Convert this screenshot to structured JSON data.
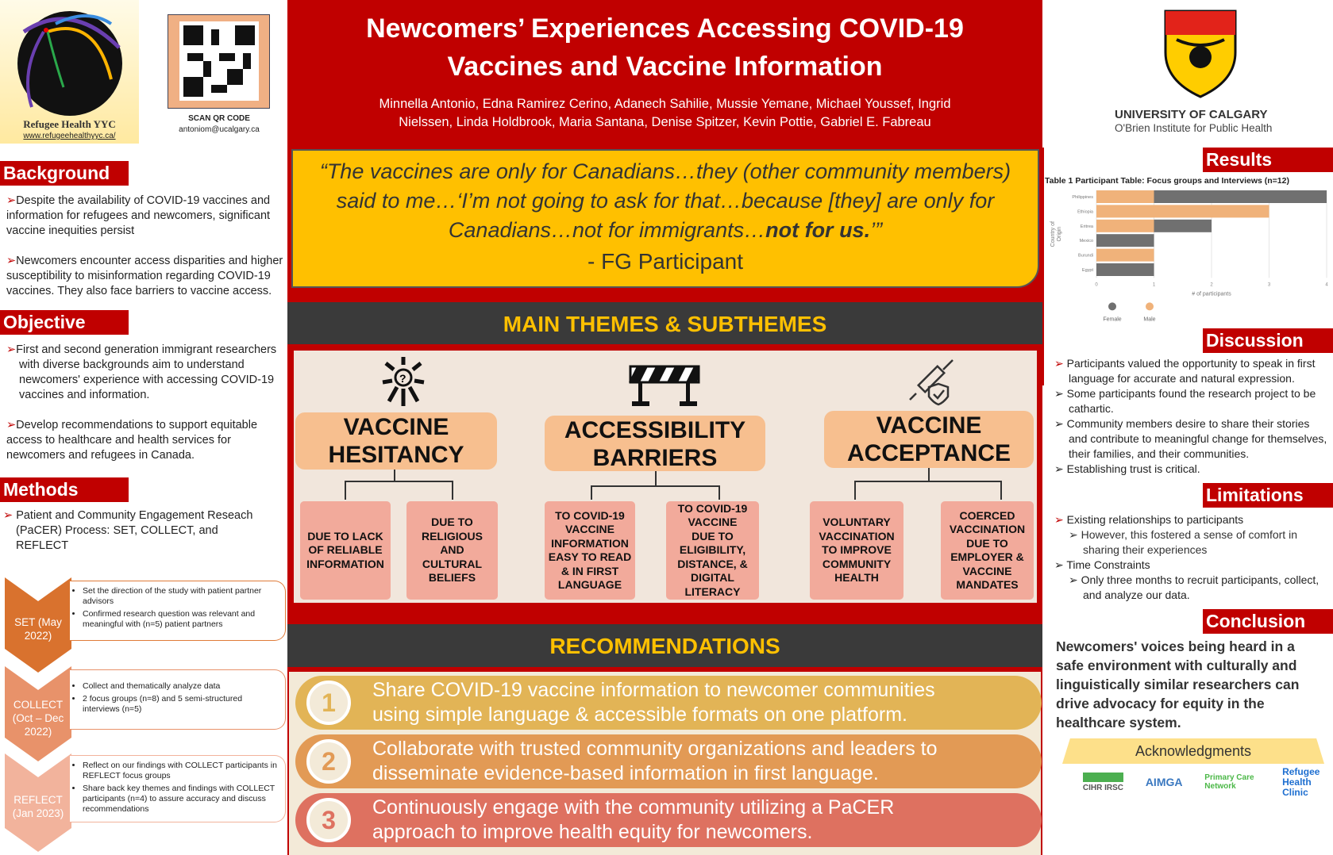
{
  "header": {
    "title_line1": "Newcomers’ Experiences Accessing COVID-19",
    "title_line2": "Vaccines and Vaccine Information",
    "authors_line1": "Minnella Antonio, Edna Ramirez Cerino, Adanech Sahilie, Mussie Yemane, Michael Youssef, Ingrid",
    "authors_line2": "Nielssen, Linda Holdbrook, Maria Santana, Denise Spitzer, Kevin Pottie, Gabriel E. Fabreau"
  },
  "logos": {
    "refugee_health": "Refugee Health YYC",
    "refugee_url": "www.refugeehealthyyc.ca/",
    "qr_label": "SCAN QR CODE",
    "qr_email": "antoniom@ucalgary.ca",
    "uofc_name": "UNIVERSITY OF CALGARY",
    "uofc_institute": "O'Brien Institute for Public Health"
  },
  "quote": {
    "text1": "“The vaccines are only for Canadians…they (other community members) said to me…‘I’m not going to ask for that…because [they] are only for Canadians…not for immigrants…",
    "text_bold": "not for us.",
    "text_end": "’”",
    "attribution": "- FG Participant"
  },
  "background": {
    "heading": "Background",
    "items": [
      "Despite the availability of COVID-19 vaccines and information for refugees and newcomers, significant vaccine inequities persist",
      "Newcomers encounter access disparities and higher susceptibility to misinformation regarding COVID-19 vaccines. They also face barriers to vaccine access."
    ]
  },
  "objective": {
    "heading": "Objective",
    "items": [
      "First and second generation immigrant researchers with diverse backgrounds aim to understand newcomers' experience with accessing COVID-19 vaccines and information.",
      "Develop recommendations to support equitable access to healthcare and health services for newcomers and refugees in Canada."
    ]
  },
  "methods": {
    "heading": "Methods",
    "intro": "Patient and Community Engagement Reseach (PaCER) Process: SET, COLLECT, and REFLECT",
    "steps": [
      {
        "label": "SET (May 2022)",
        "color": "#d9722e",
        "bullets": [
          "Set the direction of the study with patient partner advisors",
          "Confirmed research question was relevant and meaningful with (n=5) patient partners"
        ]
      },
      {
        "label": "COLLECT (Oct – Dec 2022)",
        "color": "#e8926a",
        "bullets": [
          "Collect and thematically analyze data",
          "2 focus groups (n=8) and 5 semi-structured interviews (n=5)"
        ]
      },
      {
        "label": "REFLECT (Jan 2023)",
        "color": "#f2b39c",
        "bullets": [
          "Reflect on our findings with COLLECT participants in REFLECT focus groups",
          "Share back key themes and findings with COLLECT participants (n=4) to assure accuracy and discuss recommendations"
        ]
      }
    ]
  },
  "themes": {
    "heading": "MAIN THEMES & SUBTHEMES",
    "items": [
      {
        "title1": "VACCINE",
        "title2": "HESITANCY",
        "icon": "question-person-icon",
        "subs": [
          [
            "DUE TO LACK",
            "OF RELIABLE",
            "INFORMATION"
          ],
          [
            "DUE TO",
            "RELIGIOUS",
            "AND",
            "CULTURAL",
            "BELIEFS"
          ]
        ]
      },
      {
        "title1": "ACCESSIBILITY",
        "title2": "BARRIERS",
        "icon": "barrier-icon",
        "subs": [
          [
            "TO COVID-19",
            "VACCINE",
            "INFORMATION",
            "EASY TO READ",
            "& IN FIRST",
            "LANGUAGE"
          ],
          [
            "TO COVID-19",
            "VACCINE",
            "DUE TO",
            "ELIGIBILITY,",
            "DISTANCE, &",
            "DIGITAL",
            "LITERACY"
          ]
        ]
      },
      {
        "title1": "VACCINE",
        "title2": "ACCEPTANCE",
        "icon": "syringe-shield-icon",
        "subs": [
          [
            "VOLUNTARY",
            "VACCINATION",
            "TO IMPROVE",
            "COMMUNITY",
            "HEALTH"
          ],
          [
            "COERCED",
            "VACCINATION",
            "DUE TO",
            "EMPLOYER &",
            "VACCINE",
            "MANDATES"
          ]
        ]
      }
    ]
  },
  "recommendations": {
    "heading": "RECOMMENDATIONS",
    "items": [
      {
        "num": "1",
        "line1": "Share COVID-19 vaccine information to newcomer communities",
        "line2": "using simple language & accessible formats on one platform.",
        "color": "#e2b456"
      },
      {
        "num": "2",
        "line1": "Collaborate with trusted community organizations and leaders to",
        "line2": "disseminate evidence-based information in first language.",
        "color": "#e29a55"
      },
      {
        "num": "3",
        "line1": "Continuously engage with the community utilizing a PaCER",
        "line2": "approach to improve health equity for newcomers.",
        "color": "#de7160"
      }
    ]
  },
  "results": {
    "heading": "Results"
  },
  "chart_data": {
    "type": "bar",
    "orientation": "horizontal",
    "stacked": true,
    "title": "Table 1 Participant Table: Focus groups and Interviews (n=12)",
    "xlabel": "# of participants",
    "ylabel": "Country of Origin",
    "xlim": [
      0,
      4
    ],
    "xticks": [
      "0",
      "1",
      "2",
      "3",
      "4"
    ],
    "categories": [
      "Philippines",
      "Ethiopia",
      "Eritrea",
      "Mexico",
      "Burundi",
      "Egypt"
    ],
    "series": [
      {
        "name": "Male",
        "color": "#f0b27a",
        "values": [
          1,
          3,
          1,
          0,
          1,
          0
        ]
      },
      {
        "name": "Female",
        "color": "#707070",
        "values": [
          3,
          0,
          1,
          1,
          0,
          1
        ]
      }
    ],
    "legend": "bottom",
    "legend_order": [
      "Female",
      "Male"
    ],
    "grid": true
  },
  "discussion": {
    "heading": "Discussion",
    "items": [
      "Participants valued the opportunity to speak in first language for accurate and natural expression.",
      "Some participants found the research project to be cathartic.",
      "Community members desire to share their stories and contribute to meaningful change for themselves, their families, and their communities.",
      "Establishing trust is critical."
    ]
  },
  "limitations": {
    "heading": "Limitations",
    "item1": "Existing relationships to participants",
    "sub1": "However, this fostered a sense of comfort in sharing their experiences",
    "item2": "Time Constraints",
    "sub2": "Only three months to recruit participants, collect, and analyze our data."
  },
  "conclusion": {
    "heading": "Conclusion",
    "text": "Newcomers' voices being heard in a safe environment with culturally and linguistically similar researchers can drive advocacy for equity in the healthcare system."
  },
  "acknowledgments": {
    "heading": "Acknowledgments",
    "logos": [
      "CIHR IRSC",
      "AIMGA",
      "Primary Care Network",
      "Refugee Health Clinic"
    ]
  },
  "colors": {
    "red": "#c00000",
    "gold": "#ffc000",
    "dark": "#3a3a3a",
    "theme_orange": "#f7bf8f",
    "subtheme_pink": "#f2aa9b"
  }
}
